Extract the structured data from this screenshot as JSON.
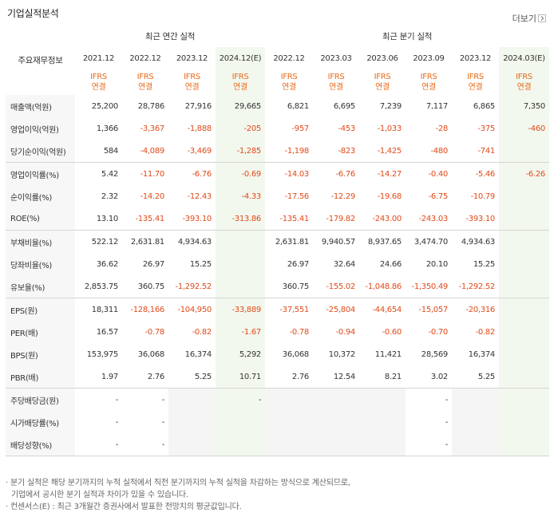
{
  "section_title": "기업실적분석",
  "more_label": "더보기",
  "key_column_label": "주요재무정보",
  "annual_group_label": "최근 연간 실적",
  "quarter_group_label": "최근 분기 실적",
  "annual_periods": [
    "2021.12",
    "2022.12",
    "2023.12",
    "2024.12(E)"
  ],
  "quarter_periods": [
    "2022.12",
    "2023.03",
    "2023.06",
    "2023.09",
    "2023.12",
    "2024.03(E)"
  ],
  "ifrs_top": "IFRS",
  "ifrs_bottom": "연결",
  "rows": [
    {
      "label": "매출액(억원)",
      "annual": [
        "25,200",
        "28,786",
        "27,916",
        "29,665"
      ],
      "quarter": [
        "6,821",
        "6,695",
        "7,239",
        "7,117",
        "6,865",
        "7,350"
      ]
    },
    {
      "label": "영업이익(억원)",
      "annual": [
        "1,366",
        "-3,367",
        "-1,888",
        "-205"
      ],
      "quarter": [
        "-957",
        "-453",
        "-1,033",
        "-28",
        "-375",
        "-460"
      ]
    },
    {
      "label": "당기순이익(억원)",
      "annual": [
        "584",
        "-4,089",
        "-3,469",
        "-1,285"
      ],
      "quarter": [
        "-1,198",
        "-823",
        "-1,425",
        "-480",
        "-741",
        ""
      ]
    },
    {
      "label": "영업이익률(%)",
      "annual": [
        "5.42",
        "-11.70",
        "-6.76",
        "-0.69"
      ],
      "quarter": [
        "-14.03",
        "-6.76",
        "-14.27",
        "-0.40",
        "-5.46",
        "-6.26"
      ]
    },
    {
      "label": "순이익률(%)",
      "annual": [
        "2.32",
        "-14.20",
        "-12.43",
        "-4.33"
      ],
      "quarter": [
        "-17.56",
        "-12.29",
        "-19.68",
        "-6.75",
        "-10.79",
        ""
      ]
    },
    {
      "label": "ROE(%)",
      "annual": [
        "13.10",
        "-135.41",
        "-393.10",
        "-313.86"
      ],
      "quarter": [
        "-135.41",
        "-179.82",
        "-243.00",
        "-243.03",
        "-393.10",
        ""
      ]
    },
    {
      "label": "부채비율(%)",
      "annual": [
        "522.12",
        "2,631.81",
        "4,934.63",
        ""
      ],
      "quarter": [
        "2,631.81",
        "9,940.57",
        "8,937.65",
        "3,474.70",
        "4,934.63",
        ""
      ]
    },
    {
      "label": "당좌비율(%)",
      "annual": [
        "36.62",
        "26.97",
        "15.25",
        ""
      ],
      "quarter": [
        "26.97",
        "32.64",
        "24.66",
        "20.10",
        "15.25",
        ""
      ]
    },
    {
      "label": "유보율(%)",
      "annual": [
        "2,853.75",
        "360.75",
        "-1,292.52",
        ""
      ],
      "quarter": [
        "360.75",
        "-155.02",
        "-1,048.86",
        "-1,350.49",
        "-1,292.52",
        ""
      ]
    },
    {
      "label": "EPS(원)",
      "annual": [
        "18,311",
        "-128,166",
        "-104,950",
        "-33,889"
      ],
      "quarter": [
        "-37,551",
        "-25,804",
        "-44,654",
        "-15,057",
        "-20,316",
        ""
      ]
    },
    {
      "label": "PER(배)",
      "annual": [
        "16.57",
        "-0.78",
        "-0.82",
        "-1.67"
      ],
      "quarter": [
        "-0.78",
        "-0.94",
        "-0.60",
        "-0.70",
        "-0.82",
        ""
      ]
    },
    {
      "label": "BPS(원)",
      "annual": [
        "153,975",
        "36,068",
        "16,374",
        "5,292"
      ],
      "quarter": [
        "36,068",
        "10,372",
        "11,421",
        "28,569",
        "16,374",
        ""
      ]
    },
    {
      "label": "PBR(배)",
      "annual": [
        "1.97",
        "2.76",
        "5.25",
        "10.71"
      ],
      "quarter": [
        "2.76",
        "12.54",
        "8.21",
        "3.02",
        "5.25",
        ""
      ]
    },
    {
      "label": "주당배당금(원)",
      "annual": [
        "-",
        "-",
        "",
        "-"
      ],
      "quarter": [
        "",
        "",
        "",
        "-",
        "",
        ""
      ]
    },
    {
      "label": "시가배당률(%)",
      "annual": [
        "-",
        "-",
        "",
        ""
      ],
      "quarter": [
        "",
        "",
        "",
        "-",
        "",
        ""
      ]
    },
    {
      "label": "배당성향(%)",
      "annual": [
        "-",
        "-",
        "",
        ""
      ],
      "quarter": [
        "",
        "",
        "",
        "-",
        "",
        ""
      ]
    }
  ],
  "notes": [
    "분기 실적은 해당 분기까지의 누적 실적에서 직전 분기까지의 누적 실적을 차감하는 방식으로 계산되므로,",
    "기업에서 공시한 분기 실적과 차이가 있을 수 있습니다.",
    "컨센서스(E) : 최근 3개월간 증권사에서 발표한 전망치의 평균값입니다."
  ],
  "colors": {
    "negative": "#e04a1a",
    "ifrs": "#e86a1a",
    "estimate_bg": "#f2f8ee",
    "header_bg": "#f7f7f7"
  }
}
